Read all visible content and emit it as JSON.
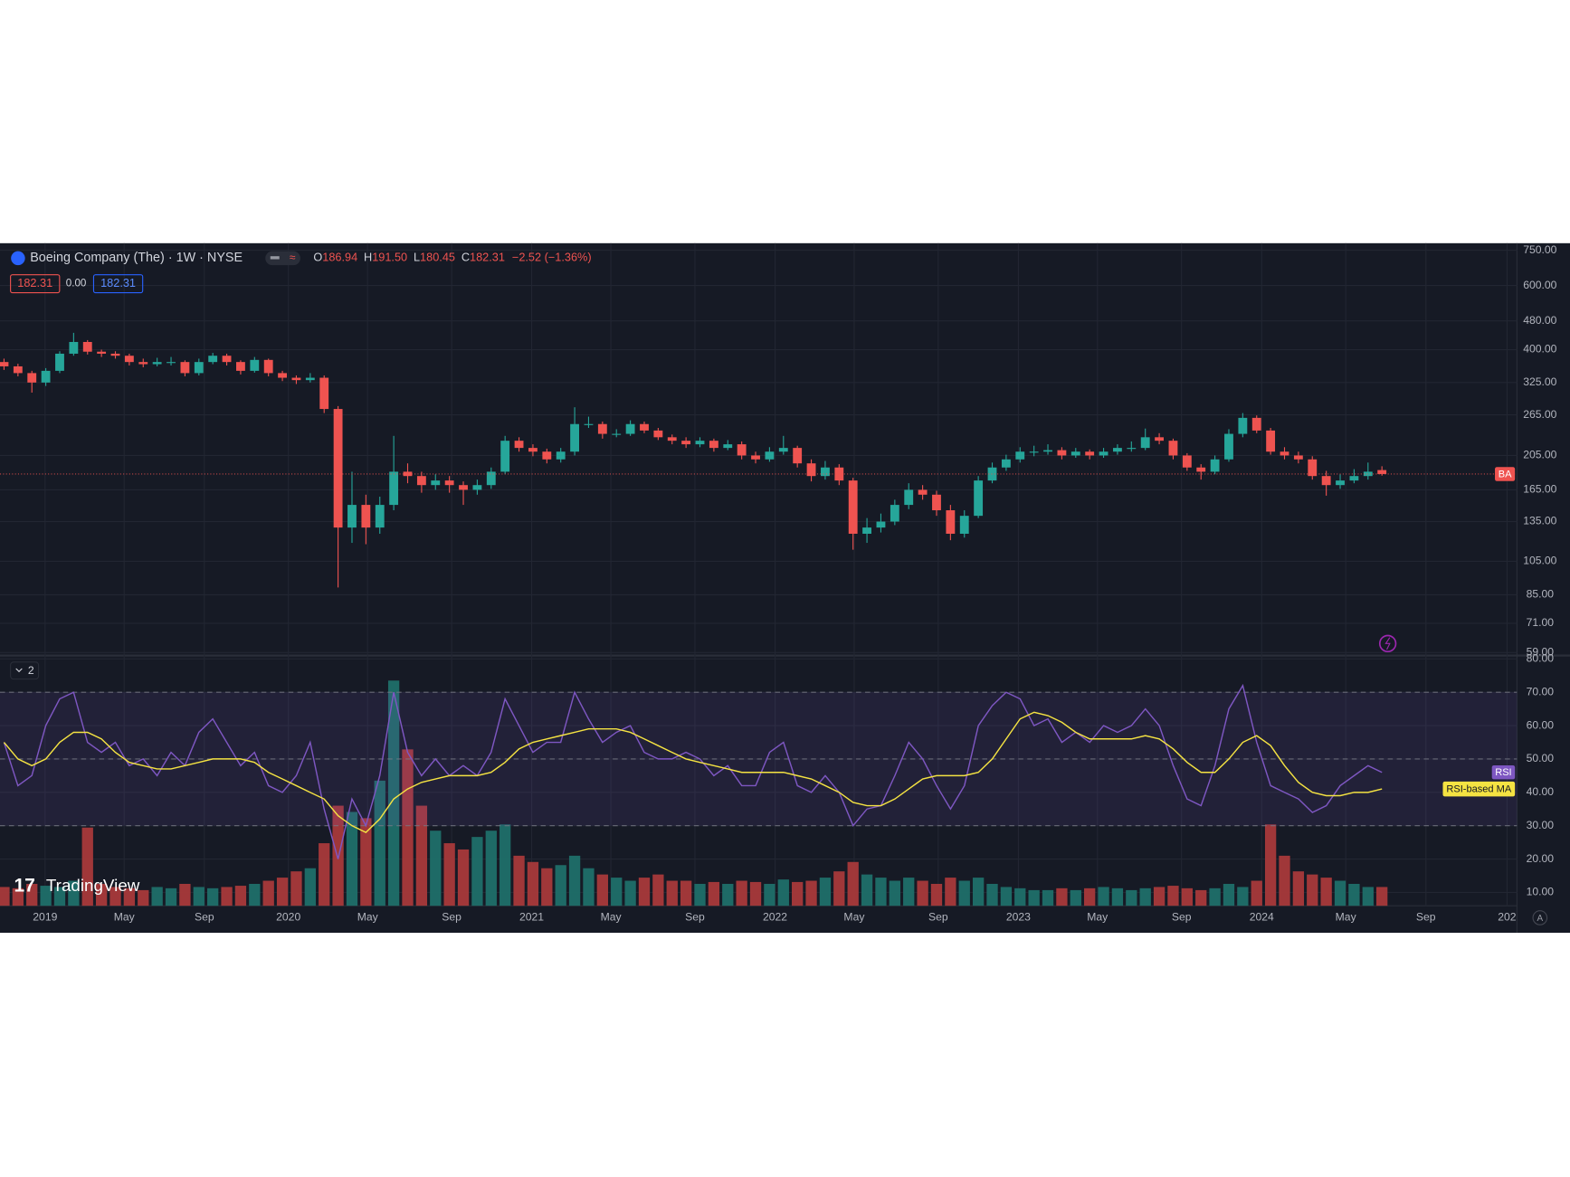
{
  "header": {
    "title": "Boeing Company (The) · 1W · NYSE",
    "ohlc": [
      {
        "label": "O",
        "value": "186.94"
      },
      {
        "label": "H",
        "value": "191.50"
      },
      {
        "label": "L",
        "value": "180.45"
      },
      {
        "label": "C",
        "value": "182.31"
      }
    ],
    "change": "−2.52 (−1.36%)",
    "bid_box": "182.31",
    "spread": "0.00",
    "ask_box": "182.31",
    "pane_count": "2",
    "logo": "TradingView",
    "symbol_label": "BA"
  },
  "chart_data": {
    "type": "candlestick",
    "price_scale": "log",
    "grid": true,
    "up_color": "#26a69a",
    "down_color": "#ef5350",
    "candles": [
      [
        370,
        378,
        352,
        360
      ],
      [
        360,
        366,
        338,
        345
      ],
      [
        345,
        350,
        305,
        325
      ],
      [
        325,
        356,
        318,
        350
      ],
      [
        350,
        396,
        345,
        390
      ],
      [
        390,
        445,
        385,
        420
      ],
      [
        420,
        425,
        388,
        395
      ],
      [
        395,
        400,
        382,
        390
      ],
      [
        390,
        396,
        378,
        385
      ],
      [
        385,
        390,
        362,
        370
      ],
      [
        370,
        378,
        358,
        365
      ],
      [
        365,
        380,
        360,
        370
      ],
      [
        370,
        382,
        362,
        370
      ],
      [
        370,
        374,
        338,
        345
      ],
      [
        345,
        378,
        340,
        370
      ],
      [
        370,
        392,
        365,
        385
      ],
      [
        385,
        390,
        362,
        370
      ],
      [
        370,
        374,
        342,
        350
      ],
      [
        350,
        382,
        346,
        375
      ],
      [
        375,
        378,
        338,
        345
      ],
      [
        345,
        350,
        328,
        335
      ],
      [
        335,
        340,
        322,
        330
      ],
      [
        330,
        345,
        325,
        335
      ],
      [
        335,
        340,
        268,
        275
      ],
      [
        275,
        280,
        89,
        130
      ],
      [
        130,
        185,
        118,
        150
      ],
      [
        150,
        160,
        117,
        130
      ],
      [
        130,
        158,
        125,
        150
      ],
      [
        150,
        232,
        145,
        185
      ],
      [
        185,
        195,
        172,
        180
      ],
      [
        180,
        185,
        162,
        170
      ],
      [
        170,
        182,
        165,
        175
      ],
      [
        175,
        180,
        162,
        170
      ],
      [
        170,
        174,
        150,
        165
      ],
      [
        165,
        176,
        160,
        170
      ],
      [
        170,
        190,
        166,
        185
      ],
      [
        185,
        232,
        182,
        225
      ],
      [
        225,
        230,
        210,
        215
      ],
      [
        215,
        220,
        204,
        210
      ],
      [
        210,
        214,
        195,
        200
      ],
      [
        200,
        215,
        196,
        210
      ],
      [
        210,
        278,
        205,
        250
      ],
      [
        250,
        262,
        244,
        250
      ],
      [
        250,
        254,
        228,
        235
      ],
      [
        235,
        242,
        230,
        235
      ],
      [
        235,
        256,
        232,
        250
      ],
      [
        250,
        254,
        236,
        240
      ],
      [
        240,
        244,
        226,
        230
      ],
      [
        230,
        234,
        220,
        225
      ],
      [
        225,
        230,
        215,
        220
      ],
      [
        220,
        230,
        216,
        225
      ],
      [
        225,
        228,
        210,
        215
      ],
      [
        215,
        226,
        212,
        220
      ],
      [
        220,
        224,
        200,
        205
      ],
      [
        205,
        210,
        195,
        200
      ],
      [
        200,
        216,
        197,
        210
      ],
      [
        210,
        232,
        206,
        215
      ],
      [
        215,
        218,
        190,
        195
      ],
      [
        195,
        200,
        174,
        180
      ],
      [
        180,
        198,
        176,
        190
      ],
      [
        190,
        194,
        170,
        175
      ],
      [
        175,
        178,
        113,
        125
      ],
      [
        125,
        138,
        118,
        130
      ],
      [
        130,
        142,
        126,
        135
      ],
      [
        135,
        155,
        132,
        150
      ],
      [
        150,
        172,
        146,
        165
      ],
      [
        165,
        170,
        155,
        160
      ],
      [
        160,
        164,
        140,
        145
      ],
      [
        145,
        150,
        120,
        125
      ],
      [
        125,
        145,
        122,
        140
      ],
      [
        140,
        180,
        138,
        175
      ],
      [
        175,
        196,
        172,
        190
      ],
      [
        190,
        206,
        186,
        200
      ],
      [
        200,
        216,
        196,
        210
      ],
      [
        210,
        218,
        204,
        210
      ],
      [
        210,
        220,
        206,
        212
      ],
      [
        212,
        216,
        200,
        205
      ],
      [
        205,
        215,
        202,
        210
      ],
      [
        210,
        213,
        200,
        205
      ],
      [
        205,
        215,
        202,
        210
      ],
      [
        210,
        220,
        206,
        215
      ],
      [
        215,
        224,
        210,
        215
      ],
      [
        215,
        243,
        212,
        230
      ],
      [
        230,
        236,
        220,
        225
      ],
      [
        225,
        228,
        200,
        205
      ],
      [
        205,
        208,
        186,
        190
      ],
      [
        190,
        194,
        176,
        185
      ],
      [
        185,
        205,
        182,
        200
      ],
      [
        200,
        242,
        197,
        235
      ],
      [
        235,
        268,
        230,
        260
      ],
      [
        260,
        264,
        236,
        240
      ],
      [
        240,
        244,
        206,
        210
      ],
      [
        210,
        216,
        200,
        205
      ],
      [
        205,
        210,
        195,
        200
      ],
      [
        200,
        204,
        176,
        180
      ],
      [
        180,
        186,
        159,
        170
      ],
      [
        170,
        182,
        166,
        175
      ],
      [
        175,
        188,
        172,
        180
      ],
      [
        180,
        196,
        176,
        185
      ],
      [
        186.94,
        191.5,
        180.45,
        182.31
      ]
    ],
    "ylim": [
      59,
      750
    ],
    "yticks": [
      {
        "value": 750,
        "label": "750.00"
      },
      {
        "value": 600,
        "label": "600.00"
      },
      {
        "value": 480,
        "label": "480.00"
      },
      {
        "value": 400,
        "label": "400.00"
      },
      {
        "value": 325,
        "label": "325.00"
      },
      {
        "value": 265,
        "label": "265.00"
      },
      {
        "value": 205,
        "label": "205.00"
      },
      {
        "value": 165,
        "label": "165.00"
      },
      {
        "value": 135,
        "label": "135.00"
      },
      {
        "value": 105,
        "label": "105.00"
      },
      {
        "value": 85,
        "label": "85.00"
      },
      {
        "value": 71,
        "label": "71.00"
      },
      {
        "value": 59,
        "label": "59.00"
      }
    ],
    "xlim": [
      -0.29,
      108.7
    ],
    "xticks": [
      {
        "value": 2.95,
        "label": "2019"
      },
      {
        "value": 8.63,
        "label": "May"
      },
      {
        "value": 14.39,
        "label": "Sep"
      },
      {
        "value": 20.43,
        "label": "2020"
      },
      {
        "value": 26.12,
        "label": "May"
      },
      {
        "value": 32.16,
        "label": "Sep"
      },
      {
        "value": 37.91,
        "label": "2021"
      },
      {
        "value": 43.6,
        "label": "May"
      },
      {
        "value": 49.64,
        "label": "Sep"
      },
      {
        "value": 55.4,
        "label": "2022"
      },
      {
        "value": 61.08,
        "label": "May"
      },
      {
        "value": 67.12,
        "label": "Sep"
      },
      {
        "value": 72.88,
        "label": "2023"
      },
      {
        "value": 78.56,
        "label": "May"
      },
      {
        "value": 84.6,
        "label": "Sep"
      },
      {
        "value": 90.36,
        "label": "2024"
      },
      {
        "value": 96.4,
        "label": "May"
      },
      {
        "value": 102.16,
        "label": "Sep"
      },
      {
        "value": 107.99,
        "label": "202"
      }
    ],
    "volume": {
      "lim": [
        0,
        400
      ],
      "values": [
        30,
        28,
        35,
        32,
        30,
        40,
        125,
        35,
        30,
        28,
        25,
        30,
        28,
        35,
        30,
        28,
        30,
        32,
        35,
        40,
        45,
        55,
        60,
        100,
        160,
        150,
        140,
        200,
        360,
        250,
        160,
        120,
        100,
        90,
        110,
        120,
        130,
        80,
        70,
        60,
        65,
        80,
        60,
        50,
        45,
        40,
        45,
        50,
        40,
        40,
        35,
        38,
        35,
        40,
        38,
        35,
        42,
        38,
        40,
        45,
        55,
        70,
        50,
        45,
        40,
        45,
        40,
        35,
        45,
        40,
        45,
        35,
        30,
        28,
        25,
        25,
        28,
        25,
        28,
        30,
        28,
        25,
        28,
        30,
        32,
        28,
        25,
        28,
        35,
        30,
        40,
        130,
        80,
        55,
        50,
        45,
        40,
        35,
        30,
        30
      ]
    },
    "rsi": {
      "name": "RSI",
      "color": "#7e57c2",
      "ylim": [
        6,
        81
      ],
      "yticks": [
        {
          "value": 80,
          "label": "80.00"
        },
        {
          "value": 70,
          "label": "70.00"
        },
        {
          "value": 60,
          "label": "60.00"
        },
        {
          "value": 50,
          "label": "50.00"
        },
        {
          "value": 40,
          "label": "40.00"
        },
        {
          "value": 30,
          "label": "30.00"
        },
        {
          "value": 20,
          "label": "20.00"
        },
        {
          "value": 10,
          "label": "10.00"
        }
      ],
      "levels": [
        70,
        50,
        30
      ],
      "values": [
        55,
        42,
        45,
        60,
        68,
        70,
        55,
        52,
        55,
        48,
        50,
        45,
        52,
        48,
        58,
        62,
        55,
        48,
        52,
        42,
        40,
        45,
        55,
        35,
        20,
        38,
        30,
        45,
        70,
        52,
        45,
        50,
        45,
        48,
        45,
        52,
        68,
        60,
        52,
        55,
        55,
        70,
        62,
        55,
        58,
        60,
        52,
        50,
        50,
        52,
        50,
        45,
        48,
        42,
        42,
        52,
        55,
        42,
        40,
        45,
        40,
        30,
        35,
        36,
        45,
        55,
        50,
        42,
        35,
        42,
        60,
        66,
        70,
        68,
        60,
        62,
        55,
        58,
        55,
        60,
        58,
        60,
        65,
        60,
        48,
        38,
        36,
        48,
        65,
        72,
        55,
        42,
        40,
        38,
        34,
        36,
        42,
        45,
        48,
        46
      ]
    },
    "rsi_ma": {
      "name": "RSI-based MA",
      "color": "#f5e342",
      "values": [
        55,
        50,
        48,
        50,
        55,
        58,
        58,
        56,
        52,
        49,
        48,
        47,
        47,
        48,
        49,
        50,
        50,
        50,
        49,
        46,
        44,
        42,
        40,
        38,
        33,
        30,
        28,
        32,
        38,
        41,
        43,
        44,
        45,
        45,
        45,
        46,
        49,
        53,
        55,
        56,
        57,
        58,
        59,
        59,
        59,
        58,
        56,
        54,
        52,
        50,
        49,
        48,
        47,
        46,
        46,
        46,
        46,
        45,
        44,
        42,
        40,
        37,
        36,
        36,
        38,
        41,
        44,
        45,
        45,
        45,
        46,
        50,
        56,
        62,
        64,
        63,
        61,
        58,
        56,
        56,
        56,
        56,
        57,
        56,
        53,
        49,
        46,
        46,
        50,
        55,
        57,
        54,
        48,
        43,
        40,
        39,
        39,
        40,
        40,
        41
      ]
    }
  }
}
